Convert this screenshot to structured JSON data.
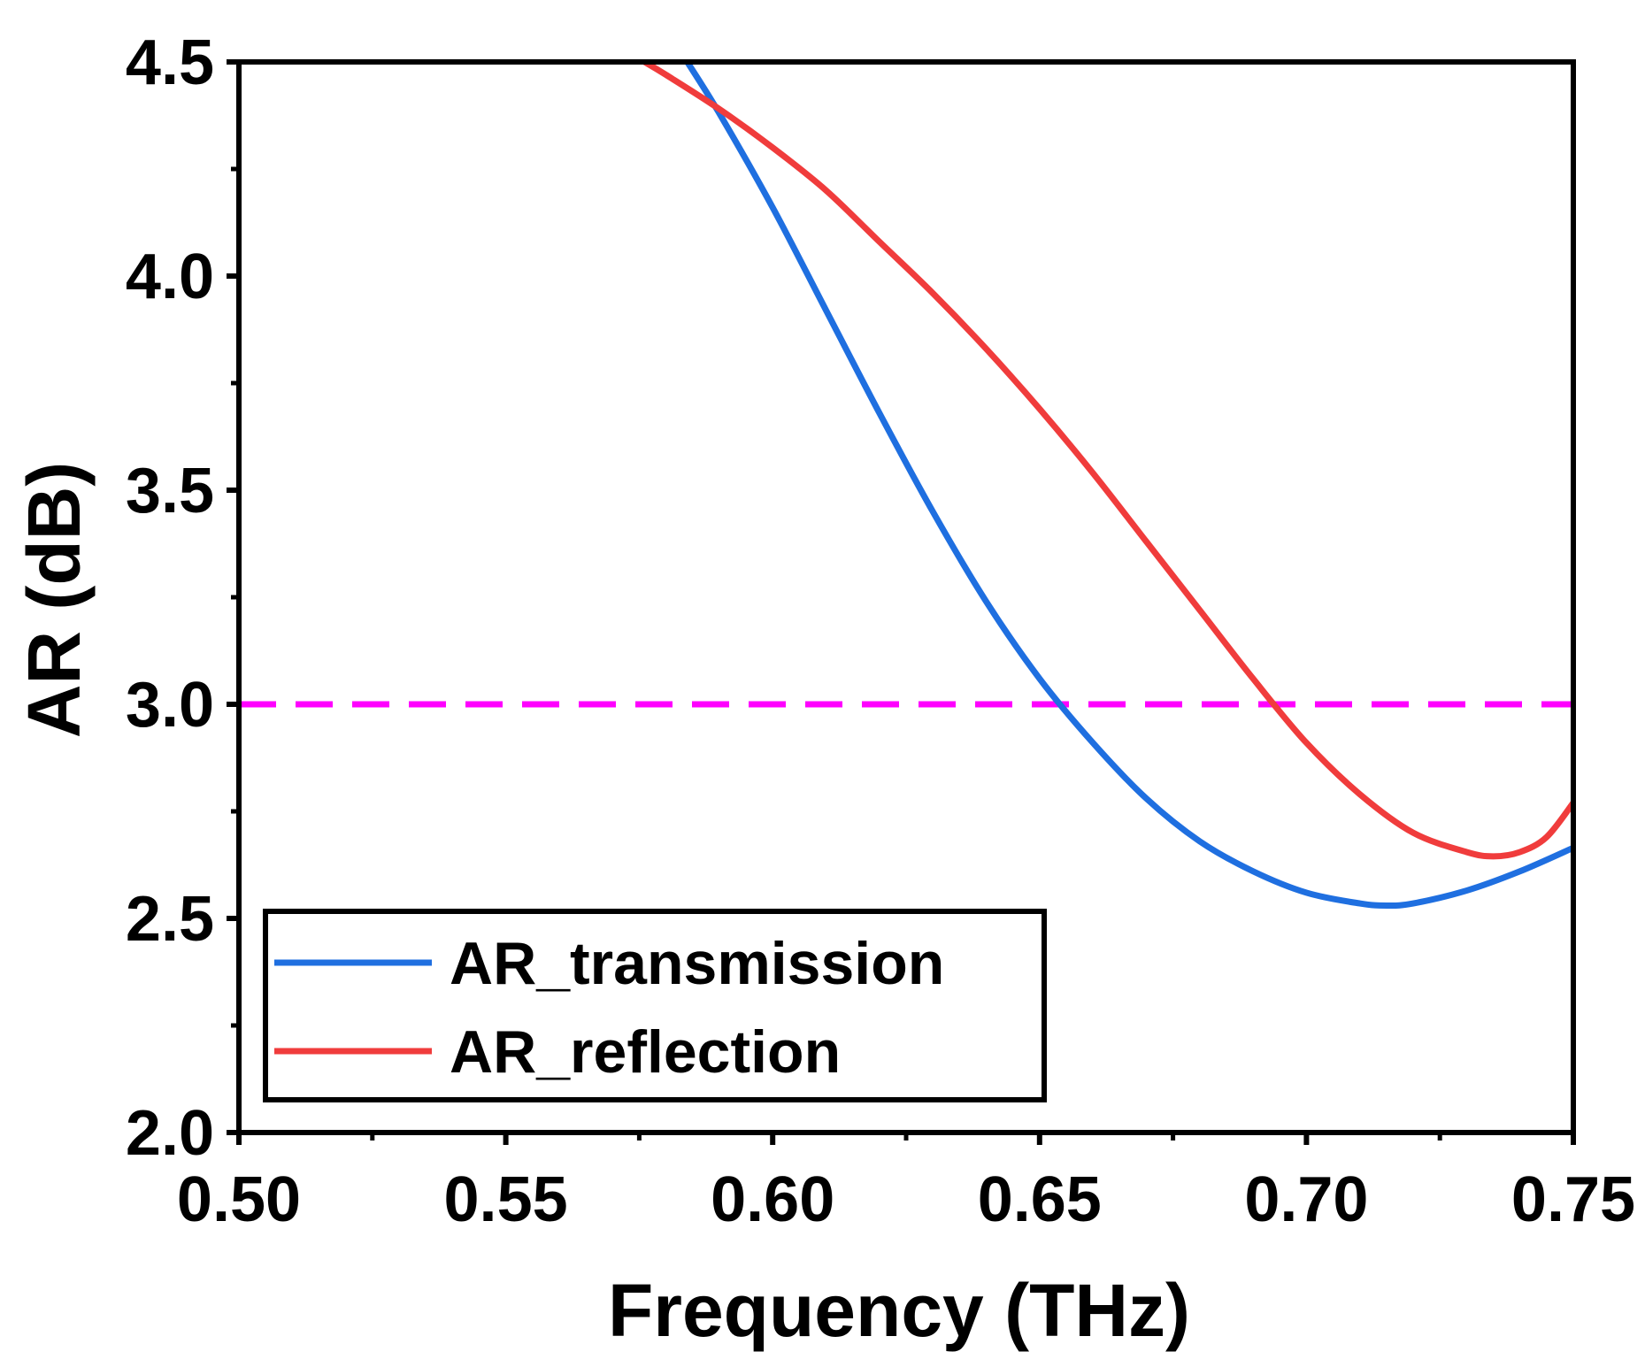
{
  "chart_data": {
    "type": "line",
    "xlabel": "Frequency (THz)",
    "ylabel": "AR (dB)",
    "xlim": [
      0.5,
      0.75
    ],
    "ylim": [
      2.0,
      4.5
    ],
    "xticks": [
      "0.50",
      "0.55",
      "0.60",
      "0.65",
      "0.70",
      "0.75"
    ],
    "yticks": [
      "2.0",
      "2.5",
      "3.0",
      "3.5",
      "4.0",
      "4.5"
    ],
    "grid": false,
    "legend_position": "bottom-left",
    "series": [
      {
        "name": "AR_transmission",
        "color": "#1f6fe0",
        "x": [
          0.584,
          0.59,
          0.6,
          0.61,
          0.62,
          0.63,
          0.64,
          0.65,
          0.66,
          0.67,
          0.68,
          0.69,
          0.7,
          0.71,
          0.715,
          0.72,
          0.73,
          0.74,
          0.75
        ],
        "y": [
          4.5,
          4.38,
          4.16,
          3.92,
          3.68,
          3.45,
          3.24,
          3.06,
          2.91,
          2.78,
          2.68,
          2.61,
          2.56,
          2.535,
          2.53,
          2.535,
          2.565,
          2.61,
          2.665
        ]
      },
      {
        "name": "AR_reflection",
        "color": "#f03c3c",
        "x": [
          0.576,
          0.58,
          0.59,
          0.6,
          0.61,
          0.62,
          0.63,
          0.64,
          0.65,
          0.66,
          0.67,
          0.68,
          0.69,
          0.7,
          0.71,
          0.72,
          0.73,
          0.735,
          0.74,
          0.745,
          0.75
        ],
        "y": [
          4.5,
          4.47,
          4.39,
          4.3,
          4.2,
          4.08,
          3.96,
          3.83,
          3.69,
          3.54,
          3.38,
          3.22,
          3.06,
          2.91,
          2.79,
          2.7,
          2.655,
          2.645,
          2.655,
          2.69,
          2.77
        ]
      }
    ],
    "reference_lines": [
      {
        "orientation": "horizontal",
        "y": 3.0,
        "color": "#ff00ff",
        "style": "dashed"
      }
    ]
  }
}
